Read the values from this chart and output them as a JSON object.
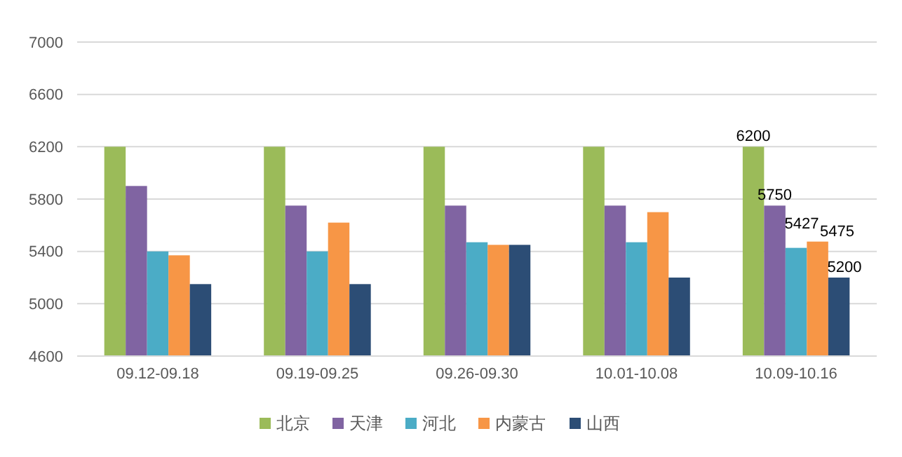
{
  "chart_data": {
    "type": "bar",
    "categories": [
      "09.12-09.18",
      "09.19-09.25",
      "09.26-09.30",
      "10.01-10.08",
      "10.09-10.16"
    ],
    "series": [
      {
        "name": "北京",
        "color": "#9bbb59",
        "values": [
          6200,
          6200,
          6200,
          6200,
          6200
        ],
        "value_labels": [
          null,
          null,
          null,
          null,
          "6200"
        ]
      },
      {
        "name": "天津",
        "color": "#8064a2",
        "values": [
          5900,
          5750,
          5750,
          5750,
          5750
        ],
        "value_labels": [
          null,
          null,
          null,
          null,
          "5750"
        ]
      },
      {
        "name": "河北",
        "color": "#4bacc6",
        "values": [
          5400,
          5400,
          5470,
          5470,
          5427
        ],
        "value_labels": [
          null,
          null,
          null,
          null,
          "5427"
        ]
      },
      {
        "name": "内蒙古",
        "color": "#f79646",
        "values": [
          5370,
          5620,
          5450,
          5700,
          5475
        ],
        "value_labels": [
          null,
          null,
          null,
          null,
          "5475"
        ]
      },
      {
        "name": "山西",
        "color": "#2c4d75",
        "values": [
          5150,
          5150,
          5450,
          5200,
          5200
        ],
        "value_labels": [
          null,
          null,
          null,
          null,
          "5200"
        ]
      }
    ],
    "ylim": [
      4600,
      7000
    ],
    "yticks": [
      4600,
      5000,
      5400,
      5800,
      6200,
      6600,
      7000
    ],
    "grid": "y",
    "legend": "bottom"
  }
}
